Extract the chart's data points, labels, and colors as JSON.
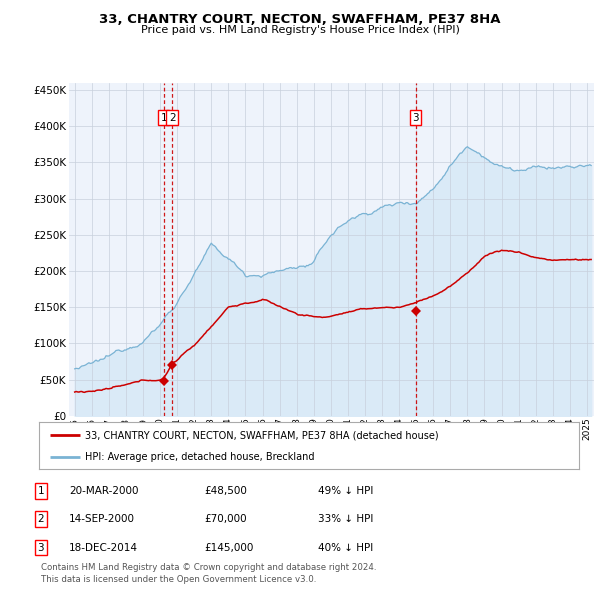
{
  "title": "33, CHANTRY COURT, NECTON, SWAFFHAM, PE37 8HA",
  "subtitle": "Price paid vs. HM Land Registry's House Price Index (HPI)",
  "legend_line1": "33, CHANTRY COURT, NECTON, SWAFFHAM, PE37 8HA (detached house)",
  "legend_line2": "HPI: Average price, detached house, Breckland",
  "footer1": "Contains HM Land Registry data © Crown copyright and database right 2024.",
  "footer2": "This data is licensed under the Open Government Licence v3.0.",
  "table_rows": [
    [
      "1",
      "20-MAR-2000",
      "£48,500",
      "49% ↓ HPI"
    ],
    [
      "2",
      "14-SEP-2000",
      "£70,000",
      "33% ↓ HPI"
    ],
    [
      "3",
      "18-DEC-2014",
      "£145,000",
      "40% ↓ HPI"
    ]
  ],
  "hpi_color": "#7ab3d4",
  "hpi_fill_color": "#daeaf7",
  "price_color": "#cc0000",
  "dashed_line_color": "#cc0000",
  "background_color": "#ffffff",
  "plot_bg_color": "#eef3fb",
  "grid_color": "#c8d0dc",
  "ylim": [
    0,
    460000
  ],
  "yticks": [
    0,
    50000,
    100000,
    150000,
    200000,
    250000,
    300000,
    350000,
    400000,
    450000
  ],
  "xstart_year": 1995,
  "xend_year": 2025
}
